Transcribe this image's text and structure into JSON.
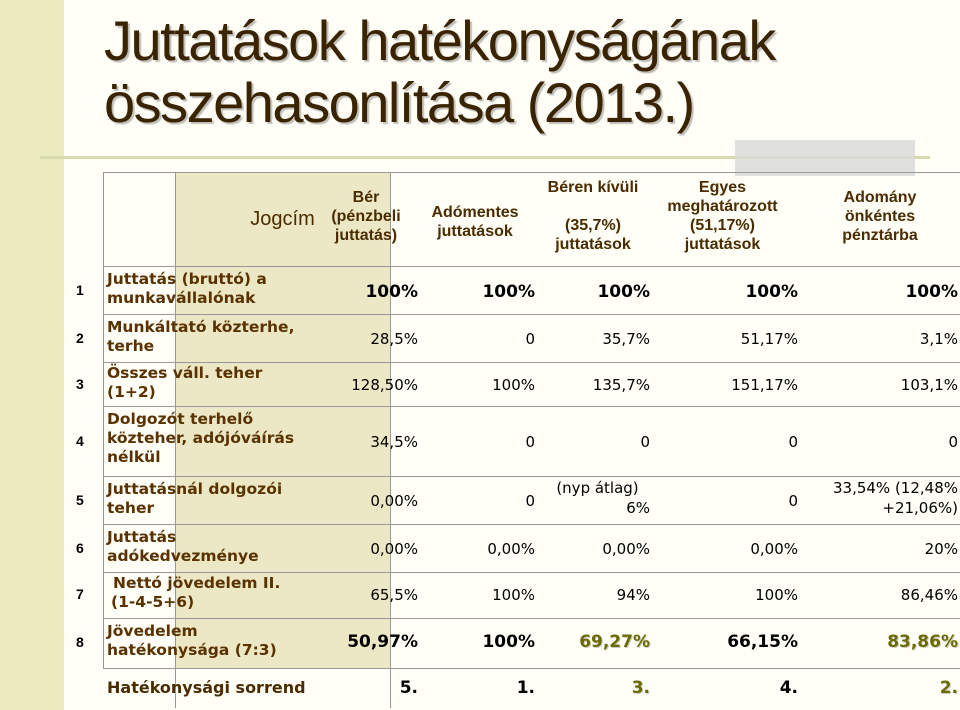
{
  "slide": {
    "title_line1": "Juttatások hatékonyságának",
    "title_line2": "összehasonlítása (2013.)"
  },
  "table": {
    "header": {
      "jogcim": "Jogcím",
      "col1": [
        "Bér",
        "(pénzbeli",
        "juttatás)"
      ],
      "col2": [
        "Adómentes",
        "juttatások"
      ],
      "col3": [
        "Béren kívüli",
        "",
        "(35,7%)",
        "juttatások"
      ],
      "col4": [
        "Egyes",
        "meghatározott",
        "(51,17%)",
        "juttatások"
      ],
      "col5": [
        "Adomány",
        "önkéntes",
        "pénztárba"
      ]
    },
    "rows": [
      {
        "num": "1",
        "label": [
          "Juttatás (bruttó) a",
          "munkavállalónak"
        ],
        "values": [
          "100%",
          "100%",
          "100%",
          "100%",
          "100%"
        ]
      },
      {
        "num": "2",
        "label": [
          "Munkáltató közterhe,",
          "terhe"
        ],
        "values": [
          "28,5%",
          "0",
          "35,7%",
          "51,17%",
          "3,1%"
        ]
      },
      {
        "num": "3",
        "label": [
          "Összes váll. teher",
          "(1+2)"
        ],
        "values": [
          "128,50%",
          "100%",
          "135,7%",
          "151,17%",
          "103,1%"
        ]
      },
      {
        "num": "4",
        "label": [
          "Dolgozót terhelő",
          "közteher, adójóváírás",
          "nélkül"
        ],
        "values": [
          "34,5%",
          "0",
          "0",
          "0",
          "0"
        ]
      },
      {
        "num": "5",
        "label": [
          "Juttatásnál dolgozói",
          "teher"
        ],
        "values": [
          "0,00%",
          "0",
          "(nyp átlag)",
          "0",
          "33,54% (12,48%"
        ],
        "values_extra": [
          "",
          "",
          "6%",
          "",
          "+21,06%)"
        ]
      },
      {
        "num": "6",
        "label": [
          "Juttatás",
          "adókedvezménye"
        ],
        "values": [
          "0,00%",
          "0,00%",
          "0,00%",
          "0,00%",
          "20%"
        ]
      },
      {
        "num": "7",
        "label": [
          "Nettó jövedelem II.",
          "(1-4-5+6)"
        ],
        "values": [
          "65,5%",
          "100%",
          "94%",
          "100%",
          "86,46%"
        ]
      },
      {
        "num": "8",
        "label": [
          "Jövedelem",
          "hatékonysága (7:3)"
        ],
        "values": [
          "50,97%",
          "100%",
          "69,27%",
          "66,15%",
          "83,86%"
        ]
      }
    ],
    "ranking": {
      "label": "Hatékonysági sorrend",
      "values": [
        "5.",
        "1.",
        "3.",
        "4.",
        "2."
      ]
    },
    "highlight_color": "#6b6b00"
  }
}
